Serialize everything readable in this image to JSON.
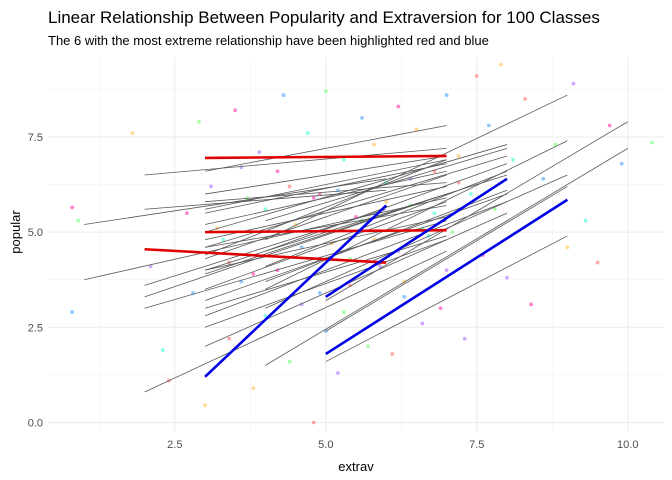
{
  "chart_data": {
    "type": "scatter",
    "title": "Linear Relationship Between Popularity and Extraversion for 100 Classes",
    "subtitle": "The 6 with the most extreme relationship have been highlighted red and blue",
    "xlabel": "extrav",
    "ylabel": "popular",
    "xlim": [
      0.4,
      10.6
    ],
    "ylim": [
      -0.25,
      9.6
    ],
    "x_ticks": [
      2.5,
      5.0,
      7.5,
      10.0
    ],
    "x_tick_labels": [
      "2.5",
      "5.0",
      "7.5",
      "10.0"
    ],
    "y_ticks": [
      0.0,
      2.5,
      5.0,
      7.5
    ],
    "y_tick_labels": [
      "0.0",
      "2.5",
      "5.0",
      "7.5"
    ],
    "grid": true,
    "legend": "none",
    "colors": {
      "class_line": "#595959",
      "highlight_red": "#e00000",
      "highlight_blue": "#0000e6",
      "point_palette": [
        "#ff6ec7",
        "#7fbfff",
        "#9aff9a",
        "#ffd27f",
        "#c49bff",
        "#6fffe0",
        "#ff9a9a"
      ]
    },
    "highlight_red": [
      {
        "x": [
          3,
          7
        ],
        "y": [
          6.95,
          7.0
        ]
      },
      {
        "x": [
          3,
          7
        ],
        "y": [
          5.0,
          5.05
        ]
      },
      {
        "x": [
          2,
          6
        ],
        "y": [
          4.55,
          4.2
        ]
      }
    ],
    "highlight_blue": [
      {
        "x": [
          3,
          6
        ],
        "y": [
          1.2,
          5.7
        ]
      },
      {
        "x": [
          5,
          8
        ],
        "y": [
          3.3,
          6.4
        ]
      },
      {
        "x": [
          5,
          9
        ],
        "y": [
          1.8,
          5.85
        ]
      }
    ],
    "class_lines": [
      {
        "x": [
          3,
          7
        ],
        "y": [
          6.6,
          7.8
        ]
      },
      {
        "x": [
          2,
          7
        ],
        "y": [
          6.5,
          7.2
        ]
      },
      {
        "x": [
          1,
          6
        ],
        "y": [
          5.2,
          6.4
        ]
      },
      {
        "x": [
          1,
          7
        ],
        "y": [
          3.75,
          5.9
        ]
      },
      {
        "x": [
          2,
          6
        ],
        "y": [
          5.6,
          6.1
        ]
      },
      {
        "x": [
          3,
          8
        ],
        "y": [
          5.0,
          7.3
        ]
      },
      {
        "x": [
          3,
          8
        ],
        "y": [
          4.6,
          7.0
        ]
      },
      {
        "x": [
          2,
          7
        ],
        "y": [
          3.0,
          5.3
        ]
      },
      {
        "x": [
          2,
          7
        ],
        "y": [
          3.3,
          6.0
        ]
      },
      {
        "x": [
          3,
          7
        ],
        "y": [
          3.5,
          5.8
        ]
      },
      {
        "x": [
          3,
          8
        ],
        "y": [
          4.0,
          6.5
        ]
      },
      {
        "x": [
          3,
          7
        ],
        "y": [
          5.5,
          6.8
        ]
      },
      {
        "x": [
          3,
          7
        ],
        "y": [
          6.0,
          7.0
        ]
      },
      {
        "x": [
          3,
          8
        ],
        "y": [
          3.2,
          6.0
        ]
      },
      {
        "x": [
          3,
          8
        ],
        "y": [
          2.0,
          5.5
        ]
      },
      {
        "x": [
          2,
          7
        ],
        "y": [
          0.8,
          4.5
        ]
      },
      {
        "x": [
          3,
          7
        ],
        "y": [
          2.5,
          4.8
        ]
      },
      {
        "x": [
          4,
          9
        ],
        "y": [
          3.0,
          6.5
        ]
      },
      {
        "x": [
          4,
          9
        ],
        "y": [
          3.5,
          7.4
        ]
      },
      {
        "x": [
          4,
          10
        ],
        "y": [
          1.5,
          7.2
        ]
      },
      {
        "x": [
          5,
          10
        ],
        "y": [
          3.2,
          7.9
        ]
      },
      {
        "x": [
          5,
          9
        ],
        "y": [
          2.4,
          6.2
        ]
      },
      {
        "x": [
          5,
          9
        ],
        "y": [
          1.6,
          4.9
        ]
      },
      {
        "x": [
          4,
          9
        ],
        "y": [
          4.8,
          8.6
        ]
      },
      {
        "x": [
          3,
          7
        ],
        "y": [
          4.3,
          6.5
        ]
      },
      {
        "x": [
          3,
          7
        ],
        "y": [
          4.8,
          6.2
        ]
      },
      {
        "x": [
          3,
          7
        ],
        "y": [
          5.2,
          6.6
        ]
      },
      {
        "x": [
          3,
          7
        ],
        "y": [
          3.9,
          6.0
        ]
      },
      {
        "x": [
          4,
          8
        ],
        "y": [
          4.5,
          6.8
        ]
      },
      {
        "x": [
          4,
          8
        ],
        "y": [
          5.3,
          7.2
        ]
      },
      {
        "x": [
          3,
          7
        ],
        "y": [
          4.0,
          5.4
        ]
      },
      {
        "x": [
          3,
          7
        ],
        "y": [
          5.8,
          6.3
        ]
      },
      {
        "x": [
          2,
          6
        ],
        "y": [
          3.6,
          5.6
        ]
      },
      {
        "x": [
          3,
          7
        ],
        "y": [
          3.0,
          4.9
        ]
      },
      {
        "x": [
          3,
          8
        ],
        "y": [
          2.8,
          5.8
        ]
      },
      {
        "x": [
          3,
          7
        ],
        "y": [
          4.6,
          5.7
        ]
      },
      {
        "x": [
          4,
          8
        ],
        "y": [
          3.7,
          6.1
        ]
      },
      {
        "x": [
          3,
          7
        ],
        "y": [
          5.6,
          6.9
        ]
      },
      {
        "x": [
          4,
          8
        ],
        "y": [
          4.1,
          6.6
        ]
      },
      {
        "x": [
          3,
          7
        ],
        "y": [
          4.4,
          6.9
        ]
      }
    ],
    "points": [
      {
        "x": 0.8,
        "y": 5.65
      },
      {
        "x": 0.8,
        "y": 2.9
      },
      {
        "x": 0.9,
        "y": 5.3
      },
      {
        "x": 1.8,
        "y": 7.6
      },
      {
        "x": 2.1,
        "y": 4.1
      },
      {
        "x": 2.3,
        "y": 1.9
      },
      {
        "x": 2.4,
        "y": 1.1
      },
      {
        "x": 2.7,
        "y": 5.5
      },
      {
        "x": 2.8,
        "y": 3.4
      },
      {
        "x": 2.9,
        "y": 7.9
      },
      {
        "x": 3.0,
        "y": 0.45
      },
      {
        "x": 3.1,
        "y": 6.2
      },
      {
        "x": 3.3,
        "y": 4.8
      },
      {
        "x": 3.4,
        "y": 2.2
      },
      {
        "x": 3.5,
        "y": 8.2
      },
      {
        "x": 3.6,
        "y": 3.7
      },
      {
        "x": 3.7,
        "y": 5.9
      },
      {
        "x": 3.8,
        "y": 0.9
      },
      {
        "x": 3.9,
        "y": 7.1
      },
      {
        "x": 4.0,
        "y": 2.8
      },
      {
        "x": 4.1,
        "y": 4.4
      },
      {
        "x": 4.2,
        "y": 6.6
      },
      {
        "x": 4.3,
        "y": 8.6
      },
      {
        "x": 4.4,
        "y": 1.6
      },
      {
        "x": 4.5,
        "y": 5.2
      },
      {
        "x": 4.6,
        "y": 3.1
      },
      {
        "x": 4.7,
        "y": 7.6
      },
      {
        "x": 4.8,
        "y": 0.0
      },
      {
        "x": 4.9,
        "y": 6.0
      },
      {
        "x": 5.0,
        "y": 2.4
      },
      {
        "x": 5.0,
        "y": 8.7
      },
      {
        "x": 5.1,
        "y": 4.7
      },
      {
        "x": 5.2,
        "y": 1.3
      },
      {
        "x": 5.3,
        "y": 6.9
      },
      {
        "x": 5.4,
        "y": 3.6
      },
      {
        "x": 5.5,
        "y": 5.4
      },
      {
        "x": 5.6,
        "y": 8.0
      },
      {
        "x": 5.7,
        "y": 2.0
      },
      {
        "x": 5.8,
        "y": 7.3
      },
      {
        "x": 5.9,
        "y": 4.1
      },
      {
        "x": 6.0,
        "y": 6.3
      },
      {
        "x": 6.1,
        "y": 1.8
      },
      {
        "x": 6.2,
        "y": 8.3
      },
      {
        "x": 6.3,
        "y": 3.3
      },
      {
        "x": 6.4,
        "y": 5.7
      },
      {
        "x": 6.5,
        "y": 7.7
      },
      {
        "x": 6.6,
        "y": 2.6
      },
      {
        "x": 6.7,
        "y": 4.9
      },
      {
        "x": 6.8,
        "y": 6.6
      },
      {
        "x": 6.9,
        "y": 3.0
      },
      {
        "x": 7.0,
        "y": 8.6
      },
      {
        "x": 7.1,
        "y": 5.0
      },
      {
        "x": 7.2,
        "y": 7.0
      },
      {
        "x": 7.3,
        "y": 2.2
      },
      {
        "x": 7.4,
        "y": 6.0
      },
      {
        "x": 7.5,
        "y": 9.1
      },
      {
        "x": 7.6,
        "y": 4.4
      },
      {
        "x": 7.7,
        "y": 7.8
      },
      {
        "x": 7.8,
        "y": 5.6
      },
      {
        "x": 7.9,
        "y": 9.4
      },
      {
        "x": 8.0,
        "y": 3.8
      },
      {
        "x": 8.1,
        "y": 6.9
      },
      {
        "x": 8.3,
        "y": 8.5
      },
      {
        "x": 8.4,
        "y": 3.1
      },
      {
        "x": 8.6,
        "y": 6.4
      },
      {
        "x": 8.8,
        "y": 7.3
      },
      {
        "x": 9.0,
        "y": 4.6
      },
      {
        "x": 9.1,
        "y": 8.9
      },
      {
        "x": 9.3,
        "y": 5.3
      },
      {
        "x": 9.5,
        "y": 4.2
      },
      {
        "x": 9.7,
        "y": 7.8
      },
      {
        "x": 9.9,
        "y": 6.8
      },
      {
        "x": 10.4,
        "y": 7.35
      },
      {
        "x": 3.2,
        "y": 5.1
      },
      {
        "x": 3.6,
        "y": 6.7
      },
      {
        "x": 4.0,
        "y": 5.6
      },
      {
        "x": 4.4,
        "y": 6.2
      },
      {
        "x": 4.8,
        "y": 5.9
      },
      {
        "x": 5.2,
        "y": 6.1
      },
      {
        "x": 5.6,
        "y": 5.3
      },
      {
        "x": 6.0,
        "y": 5.8
      },
      {
        "x": 6.4,
        "y": 6.4
      },
      {
        "x": 6.8,
        "y": 5.5
      },
      {
        "x": 7.2,
        "y": 6.3
      },
      {
        "x": 4.2,
        "y": 4.0
      },
      {
        "x": 4.6,
        "y": 4.6
      },
      {
        "x": 5.4,
        "y": 4.3
      },
      {
        "x": 5.8,
        "y": 4.8
      },
      {
        "x": 6.2,
        "y": 4.5
      },
      {
        "x": 6.6,
        "y": 5.1
      },
      {
        "x": 3.4,
        "y": 4.2
      },
      {
        "x": 3.8,
        "y": 3.9
      },
      {
        "x": 4.9,
        "y": 3.4
      },
      {
        "x": 5.3,
        "y": 2.9
      },
      {
        "x": 6.3,
        "y": 3.7
      },
      {
        "x": 7.0,
        "y": 4.0
      }
    ]
  }
}
